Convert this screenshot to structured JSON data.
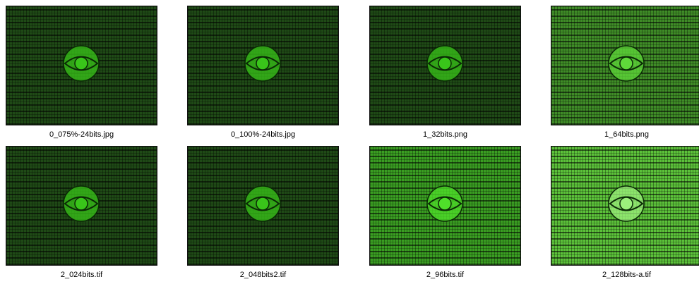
{
  "files": [
    "0_075%-24bits.jpg",
    "0_100%-24bits.jpg",
    "1_32bits.png",
    "1_64bits.png",
    "2_024bits.tif",
    "2_048bits2.tif",
    "2_96bits.tif",
    "2_128bits-a.tif"
  ]
}
